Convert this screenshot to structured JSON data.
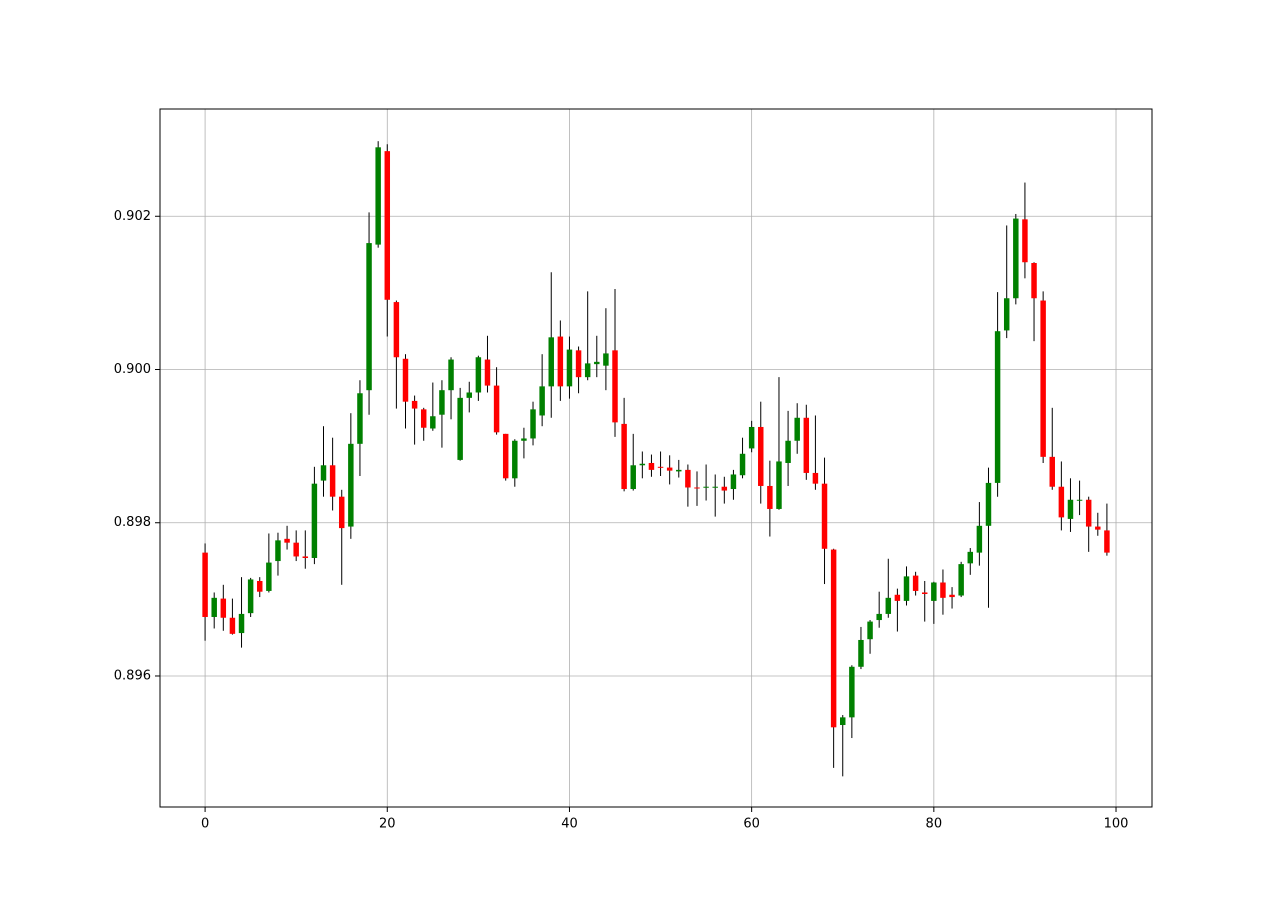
{
  "chart_data": {
    "type": "candlestick",
    "x": [
      0,
      1,
      2,
      3,
      4,
      5,
      6,
      7,
      8,
      9,
      10,
      11,
      12,
      13,
      14,
      15,
      16,
      17,
      18,
      19,
      20,
      21,
      22,
      23,
      24,
      25,
      26,
      27,
      28,
      29,
      30,
      31,
      32,
      33,
      34,
      35,
      36,
      37,
      38,
      39,
      40,
      41,
      42,
      43,
      44,
      45,
      46,
      47,
      48,
      49,
      50,
      51,
      52,
      53,
      54,
      55,
      56,
      57,
      58,
      59,
      60,
      61,
      62,
      63,
      64,
      65,
      66,
      67,
      68,
      69,
      70,
      71,
      72,
      73,
      74,
      75,
      76,
      77,
      78,
      79,
      80,
      81,
      82,
      83,
      84,
      85,
      86,
      87,
      88,
      89,
      90,
      91,
      92,
      93,
      94,
      95,
      96,
      97,
      98,
      99
    ],
    "open": [
      0.89761,
      0.89677,
      0.89701,
      0.89676,
      0.89656,
      0.89682,
      0.89724,
      0.89711,
      0.8975,
      0.89779,
      0.89774,
      0.89756,
      0.89754,
      0.89855,
      0.89875,
      0.89834,
      0.89795,
      0.89903,
      0.89973,
      0.90163,
      0.90285,
      0.90088,
      0.90014,
      0.89959,
      0.89948,
      0.89923,
      0.89941,
      0.89973,
      0.89882,
      0.89963,
      0.8997,
      0.90013,
      0.89979,
      0.89916,
      0.89858,
      0.89907,
      0.8991,
      0.8994,
      0.89978,
      0.90043,
      0.89978,
      0.90025,
      0.8999,
      0.90007,
      0.90005,
      0.90025,
      0.89929,
      0.89844,
      0.89875,
      0.89878,
      0.89873,
      0.89872,
      0.89867,
      0.89869,
      0.89846,
      0.89846,
      0.89846,
      0.89847,
      0.89844,
      0.89862,
      0.89897,
      0.89925,
      0.89848,
      0.89818,
      0.89878,
      0.89907,
      0.89937,
      0.89865,
      0.89851,
      0.89765,
      0.89536,
      0.89546,
      0.89612,
      0.89648,
      0.89673,
      0.89681,
      0.89706,
      0.89698,
      0.89731,
      0.89709,
      0.89698,
      0.89722,
      0.89706,
      0.89705,
      0.89747,
      0.89761,
      0.89796,
      0.89852,
      0.90051,
      0.90093,
      0.90196,
      0.90139,
      0.9009,
      0.89886,
      0.89847,
      0.89805,
      0.89829,
      0.8983,
      0.89795,
      0.8979
    ],
    "high": [
      0.89773,
      0.89709,
      0.89719,
      0.89701,
      0.89729,
      0.89728,
      0.89729,
      0.89786,
      0.89787,
      0.89796,
      0.8979,
      0.8979,
      0.89873,
      0.89926,
      0.89911,
      0.89843,
      0.89943,
      0.89986,
      0.90205,
      0.90298,
      0.90294,
      0.9009,
      0.9002,
      0.89966,
      0.8995,
      0.89983,
      0.89986,
      0.90016,
      0.89976,
      0.89984,
      0.90018,
      0.90044,
      0.90003,
      0.89916,
      0.89909,
      0.89924,
      0.89958,
      0.9002,
      0.90127,
      0.90064,
      0.90043,
      0.9003,
      0.90102,
      0.90044,
      0.9008,
      0.90105,
      0.89963,
      0.89916,
      0.89893,
      0.89889,
      0.89893,
      0.89888,
      0.89882,
      0.89876,
      0.89867,
      0.89876,
      0.89863,
      0.8986,
      0.89869,
      0.89911,
      0.89933,
      0.89958,
      0.89881,
      0.8999,
      0.89946,
      0.89956,
      0.89954,
      0.8994,
      0.89885,
      0.89766,
      0.89549,
      0.89614,
      0.89664,
      0.89673,
      0.8971,
      0.89753,
      0.89714,
      0.89743,
      0.89736,
      0.89724,
      0.89723,
      0.89739,
      0.89716,
      0.89749,
      0.89767,
      0.89827,
      0.89872,
      0.90101,
      0.90188,
      0.90203,
      0.90244,
      0.9014,
      0.90102,
      0.8995,
      0.8988,
      0.89858,
      0.89855,
      0.89834,
      0.89813,
      0.89825
    ],
    "low": [
      0.89646,
      0.89662,
      0.89659,
      0.89654,
      0.89637,
      0.89677,
      0.89703,
      0.89709,
      0.89731,
      0.89765,
      0.8975,
      0.8974,
      0.89746,
      0.89834,
      0.89816,
      0.89719,
      0.89779,
      0.89861,
      0.89941,
      0.90159,
      0.90043,
      0.89949,
      0.89923,
      0.89902,
      0.89907,
      0.8992,
      0.89898,
      0.89935,
      0.89881,
      0.89944,
      0.89959,
      0.8997,
      0.89915,
      0.89855,
      0.89847,
      0.89884,
      0.89901,
      0.89926,
      0.89937,
      0.89959,
      0.89962,
      0.89969,
      0.89986,
      0.8999,
      0.89973,
      0.89912,
      0.89841,
      0.89842,
      0.89858,
      0.8986,
      0.89861,
      0.8985,
      0.89859,
      0.89821,
      0.89822,
      0.89829,
      0.89808,
      0.89825,
      0.8983,
      0.89858,
      0.89892,
      0.89825,
      0.89782,
      0.89817,
      0.89848,
      0.8989,
      0.89856,
      0.89843,
      0.8972,
      0.8948,
      0.89469,
      0.89519,
      0.89609,
      0.89629,
      0.89663,
      0.89676,
      0.89658,
      0.89692,
      0.89705,
      0.89671,
      0.89668,
      0.8968,
      0.89688,
      0.89703,
      0.89732,
      0.89744,
      0.89689,
      0.89834,
      0.90041,
      0.90085,
      0.90119,
      0.90037,
      0.89878,
      0.89843,
      0.8979,
      0.89788,
      0.8981,
      0.89762,
      0.89783,
      0.89757
    ],
    "close": [
      0.89677,
      0.89702,
      0.89676,
      0.89655,
      0.89681,
      0.89726,
      0.8971,
      0.89748,
      0.89777,
      0.89774,
      0.89756,
      0.89754,
      0.89851,
      0.89875,
      0.89834,
      0.89793,
      0.89903,
      0.89969,
      0.90165,
      0.9029,
      0.90091,
      0.90016,
      0.89958,
      0.89949,
      0.89924,
      0.89939,
      0.89973,
      0.90013,
      0.89963,
      0.8997,
      0.90016,
      0.89979,
      0.89918,
      0.89858,
      0.89907,
      0.8991,
      0.89948,
      0.89978,
      0.90042,
      0.89978,
      0.90026,
      0.8999,
      0.90008,
      0.9001,
      0.90021,
      0.89931,
      0.89844,
      0.89875,
      0.89877,
      0.89869,
      0.89872,
      0.89868,
      0.89869,
      0.89846,
      0.89845,
      0.89847,
      0.89847,
      0.89842,
      0.89863,
      0.8989,
      0.89925,
      0.89848,
      0.89818,
      0.8988,
      0.89907,
      0.89937,
      0.89865,
      0.89851,
      0.89766,
      0.89533,
      0.89546,
      0.89612,
      0.89647,
      0.89671,
      0.89681,
      0.89702,
      0.89698,
      0.8973,
      0.89711,
      0.89707,
      0.89722,
      0.89702,
      0.89703,
      0.89746,
      0.89762,
      0.89796,
      0.89852,
      0.9005,
      0.90093,
      0.90197,
      0.9014,
      0.90093,
      0.89886,
      0.89847,
      0.89807,
      0.8983,
      0.8983,
      0.89795,
      0.89791,
      0.89761
    ],
    "up_color": "#008000",
    "down_color": "#ff0000",
    "wick_color": "#000000",
    "xlim": [
      -4.95,
      103.95
    ],
    "ylim": [
      0.89429,
      0.9034
    ],
    "xticks": [
      0,
      20,
      40,
      60,
      80,
      100
    ],
    "yticks": [
      0.896,
      0.898,
      {
        "value": 0.9,
        "label": "0.900"
      },
      0.902
    ],
    "grid": true
  }
}
